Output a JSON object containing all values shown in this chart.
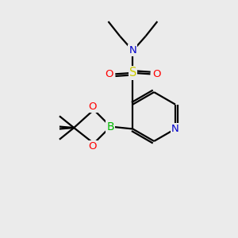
{
  "bg_color": "#ebebeb",
  "atom_colors": {
    "C": "#000000",
    "N": "#0000cc",
    "O": "#ff0000",
    "S": "#cccc00",
    "B": "#00bb00"
  },
  "figsize": [
    3.0,
    3.0
  ],
  "dpi": 100,
  "lw": 1.6,
  "fontsize": 9.5
}
